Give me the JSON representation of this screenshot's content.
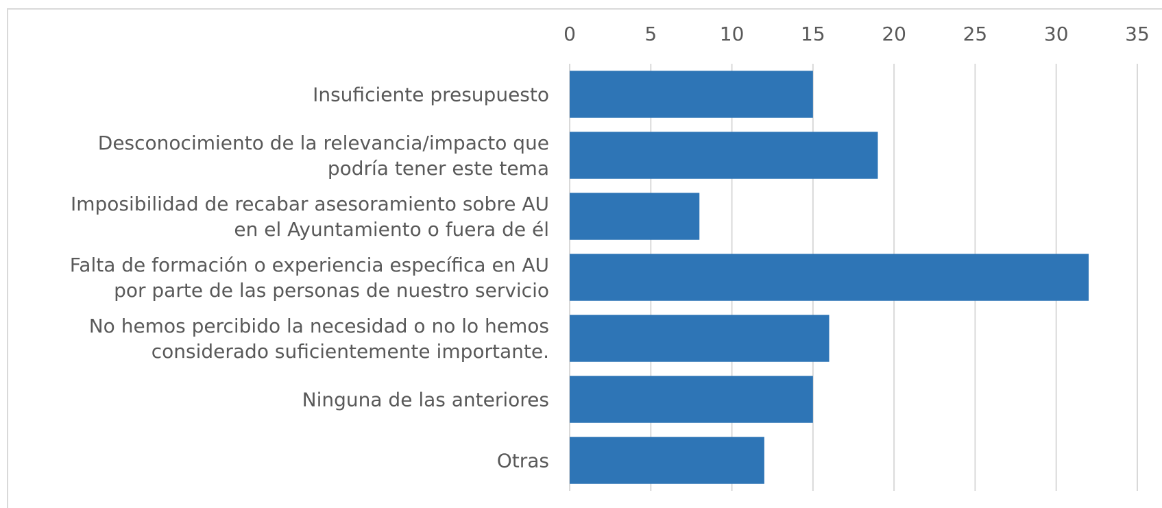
{
  "chart_data": {
    "type": "bar",
    "orientation": "horizontal",
    "categories": [
      "Insuficiente presupuesto",
      "Desconocimiento de la relevancia/impacto que\npodría tener este tema",
      "Imposibilidad de recabar asesoramiento sobre AU\nen el Ayuntamiento o fuera de él",
      "Falta de formación o experiencia específica en AU\npor parte de las personas de nuestro servicio",
      "No hemos percibido la necesidad o no lo hemos\nconsiderado suficientemente importante.",
      "Ninguna de las anteriores",
      "Otras"
    ],
    "values": [
      15,
      19,
      8,
      32,
      16,
      15,
      12
    ],
    "color": "#2e75b6",
    "xlim": [
      0,
      35
    ],
    "xticks": [
      0,
      5,
      10,
      15,
      20,
      25,
      30,
      35
    ],
    "grid": true
  }
}
